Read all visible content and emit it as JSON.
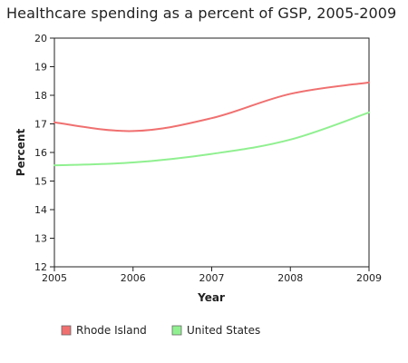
{
  "chart_data": {
    "type": "line",
    "title": "Healthcare spending as a percent of GSP, 2005-2009",
    "xlabel": "Year",
    "ylabel": "Percent",
    "categories": [
      "2005",
      "2006",
      "2007",
      "2008",
      "2009"
    ],
    "x": [
      2005,
      2006,
      2007,
      2008,
      2009
    ],
    "xlim": [
      2005,
      2009
    ],
    "ylim": [
      12,
      20
    ],
    "yticks": [
      12,
      13,
      14,
      15,
      16,
      17,
      18,
      19,
      20
    ],
    "grid": false,
    "legend_position": "bottom",
    "series": [
      {
        "name": "Rhode Island",
        "color": "#f07070",
        "values": [
          17.05,
          16.75,
          17.2,
          18.05,
          18.45
        ]
      },
      {
        "name": "United States",
        "color": "#90f090",
        "values": [
          15.55,
          15.65,
          15.95,
          16.45,
          17.4
        ]
      }
    ]
  }
}
